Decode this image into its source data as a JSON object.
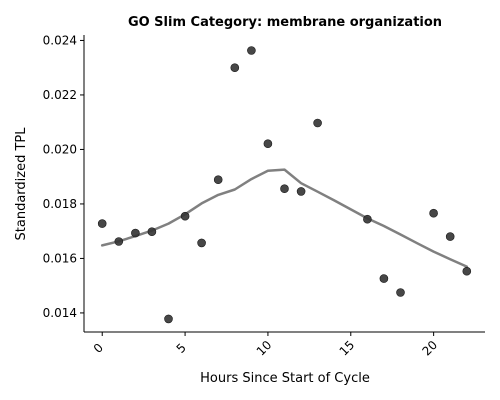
{
  "chart_data": {
    "type": "scatter",
    "title": "GO Slim Category: membrane organization",
    "xlabel": "Hours Since Start of Cycle",
    "ylabel": "Standardized TPL",
    "xlim": [
      -1.1,
      23.1
    ],
    "ylim": [
      0.0133,
      0.0242
    ],
    "xticks": [
      0,
      5,
      10,
      15,
      20
    ],
    "xtick_labels": [
      "0",
      "5",
      "10",
      "15",
      "20"
    ],
    "yticks": [
      0.014,
      0.016,
      0.018,
      0.02,
      0.022,
      0.024
    ],
    "ytick_labels": [
      "0.014",
      "0.016",
      "0.018",
      "0.020",
      "0.022",
      "0.024"
    ],
    "grid": false,
    "colors": {
      "points": "#333333",
      "trend": "#808080"
    },
    "series": [
      {
        "type": "scatter",
        "points": [
          {
            "x": 0,
            "y": 0.01728
          },
          {
            "x": 1,
            "y": 0.01662
          },
          {
            "x": 2,
            "y": 0.01693
          },
          {
            "x": 3,
            "y": 0.01698
          },
          {
            "x": 4,
            "y": 0.01378
          },
          {
            "x": 5,
            "y": 0.01755
          },
          {
            "x": 6,
            "y": 0.01657
          },
          {
            "x": 7,
            "y": 0.01889
          },
          {
            "x": 8,
            "y": 0.023
          },
          {
            "x": 9,
            "y": 0.02363
          },
          {
            "x": 10,
            "y": 0.02021
          },
          {
            "x": 11,
            "y": 0.01856
          },
          {
            "x": 12,
            "y": 0.01846
          },
          {
            "x": 13,
            "y": 0.02097
          },
          {
            "x": 16,
            "y": 0.01744
          },
          {
            "x": 17,
            "y": 0.01526
          },
          {
            "x": 18,
            "y": 0.01475
          },
          {
            "x": 20,
            "y": 0.01766
          },
          {
            "x": 21,
            "y": 0.0168
          },
          {
            "x": 22,
            "y": 0.01553
          }
        ]
      },
      {
        "type": "line",
        "points": [
          {
            "x": 0,
            "y": 0.01648
          },
          {
            "x": 1,
            "y": 0.01663
          },
          {
            "x": 2,
            "y": 0.01682
          },
          {
            "x": 3,
            "y": 0.01702
          },
          {
            "x": 4,
            "y": 0.01728
          },
          {
            "x": 5,
            "y": 0.01762
          },
          {
            "x": 6,
            "y": 0.01802
          },
          {
            "x": 7,
            "y": 0.01833
          },
          {
            "x": 8,
            "y": 0.01853
          },
          {
            "x": 9,
            "y": 0.01891
          },
          {
            "x": 10,
            "y": 0.01922
          },
          {
            "x": 11,
            "y": 0.01926
          },
          {
            "x": 12,
            "y": 0.01876
          },
          {
            "x": 13,
            "y": 0.01845
          },
          {
            "x": 14,
            "y": 0.01813
          },
          {
            "x": 15,
            "y": 0.0178
          },
          {
            "x": 16,
            "y": 0.01747
          },
          {
            "x": 17,
            "y": 0.01719
          },
          {
            "x": 18,
            "y": 0.01688
          },
          {
            "x": 19,
            "y": 0.01656
          },
          {
            "x": 20,
            "y": 0.01625
          },
          {
            "x": 21,
            "y": 0.01597
          },
          {
            "x": 22,
            "y": 0.0157
          }
        ]
      }
    ]
  }
}
